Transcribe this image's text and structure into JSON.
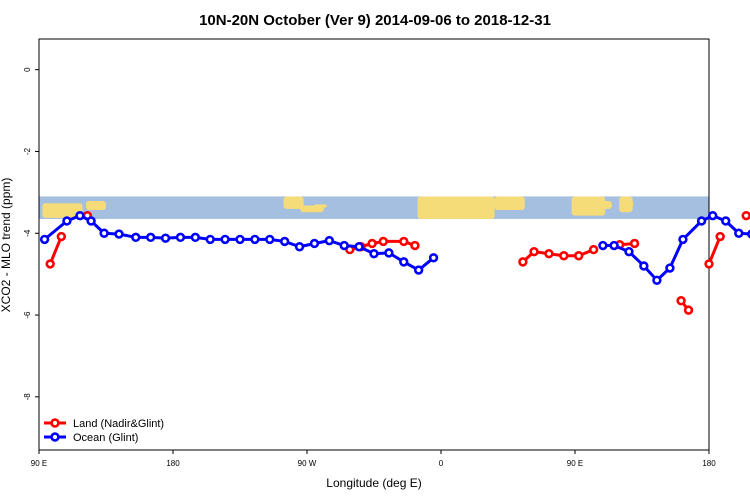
{
  "chart_data": {
    "type": "line",
    "title": "10N-20N October (Ver 9)   2014-09-06 to 2018-12-31",
    "xlabel": "Longitude (deg E)",
    "ylabel": "XCO2 - MLO trend (ppm)",
    "xlim": [
      90,
      450
    ],
    "ylim": [
      -9.3,
      0.75
    ],
    "x_ticks": [
      {
        "value": 90,
        "label": "90 E"
      },
      {
        "value": 180,
        "label": "180"
      },
      {
        "value": 270,
        "label": "90 W"
      },
      {
        "value": 360,
        "label": "0"
      },
      {
        "value": 450,
        "label": "90 E"
      },
      {
        "value": 540,
        "label": "180"
      }
    ],
    "y_ticks": [
      {
        "value": 0,
        "label": "0"
      },
      {
        "value": -2,
        "label": "-2"
      },
      {
        "value": -4,
        "label": "-4"
      },
      {
        "value": -6,
        "label": "-6"
      },
      {
        "value": -8,
        "label": "-8"
      }
    ],
    "map_band": {
      "y_top": -3.1,
      "y_bottom": -3.65,
      "ocean_color": "#a4bfe0",
      "land_color": "#f6dc78"
    },
    "legend": {
      "position": "bottom-left"
    },
    "series": [
      {
        "name": "Land (Nadir&Glint)",
        "color": "#ff0000",
        "segments": [
          [
            [
              96,
              -4.75
            ],
            [
              102,
              -4.08
            ]
          ],
          [
            [
              116,
              -3.57
            ]
          ],
          [
            [
              257,
              -4.4
            ],
            [
              263,
              -4.33
            ],
            [
              269,
              -4.25
            ],
            [
              275,
              -4.2
            ],
            [
              286,
              -4.2
            ],
            [
              292,
              -4.3
            ]
          ],
          [
            [
              350,
              -4.7
            ],
            [
              356,
              -4.45
            ],
            [
              364,
              -4.5
            ],
            [
              372,
              -4.55
            ],
            [
              380,
              -4.55
            ],
            [
              388,
              -4.4
            ]
          ],
          [
            [
              402,
              -4.28
            ],
            [
              410,
              -4.25
            ]
          ],
          [
            [
              435,
              -5.65
            ],
            [
              439,
              -5.88
            ]
          ],
          [
            [
              450,
              -4.75
            ],
            [
              456,
              -4.08
            ]
          ],
          [
            [
              470,
              -3.57
            ]
          ]
        ]
      },
      {
        "name": "Ocean (Glint)",
        "color": "#0000ff",
        "segments": [
          [
            [
              93,
              -4.15
            ],
            [
              105,
              -3.7
            ],
            [
              112,
              -3.57
            ],
            [
              118,
              -3.7
            ],
            [
              125,
              -4.0
            ],
            [
              133,
              -4.02
            ],
            [
              142,
              -4.1
            ],
            [
              150,
              -4.1
            ],
            [
              158,
              -4.12
            ],
            [
              166,
              -4.1
            ],
            [
              174,
              -4.1
            ],
            [
              182,
              -4.15
            ],
            [
              190,
              -4.15
            ],
            [
              198,
              -4.15
            ],
            [
              206,
              -4.15
            ],
            [
              214,
              -4.15
            ],
            [
              222,
              -4.2
            ],
            [
              230,
              -4.33
            ],
            [
              238,
              -4.25
            ],
            [
              246,
              -4.18
            ],
            [
              254,
              -4.3
            ],
            [
              262,
              -4.33
            ],
            [
              270,
              -4.5
            ],
            [
              278,
              -4.48
            ],
            [
              286,
              -4.7
            ],
            [
              294,
              -4.9
            ],
            [
              302,
              -4.6
            ]
          ],
          [
            [
              393,
              -4.3
            ],
            [
              399,
              -4.3
            ],
            [
              407,
              -4.45
            ],
            [
              415,
              -4.8
            ],
            [
              422,
              -5.15
            ],
            [
              429,
              -4.85
            ],
            [
              436,
              -4.15
            ],
            [
              446,
              -3.7
            ],
            [
              452,
              -3.57
            ],
            [
              459,
              -3.7
            ],
            [
              466,
              -4.0
            ],
            [
              473,
              -4.02
            ],
            [
              481,
              -4.1
            ],
            [
              489,
              -4.1
            ],
            [
              497,
              -4.12
            ]
          ]
        ]
      }
    ]
  }
}
